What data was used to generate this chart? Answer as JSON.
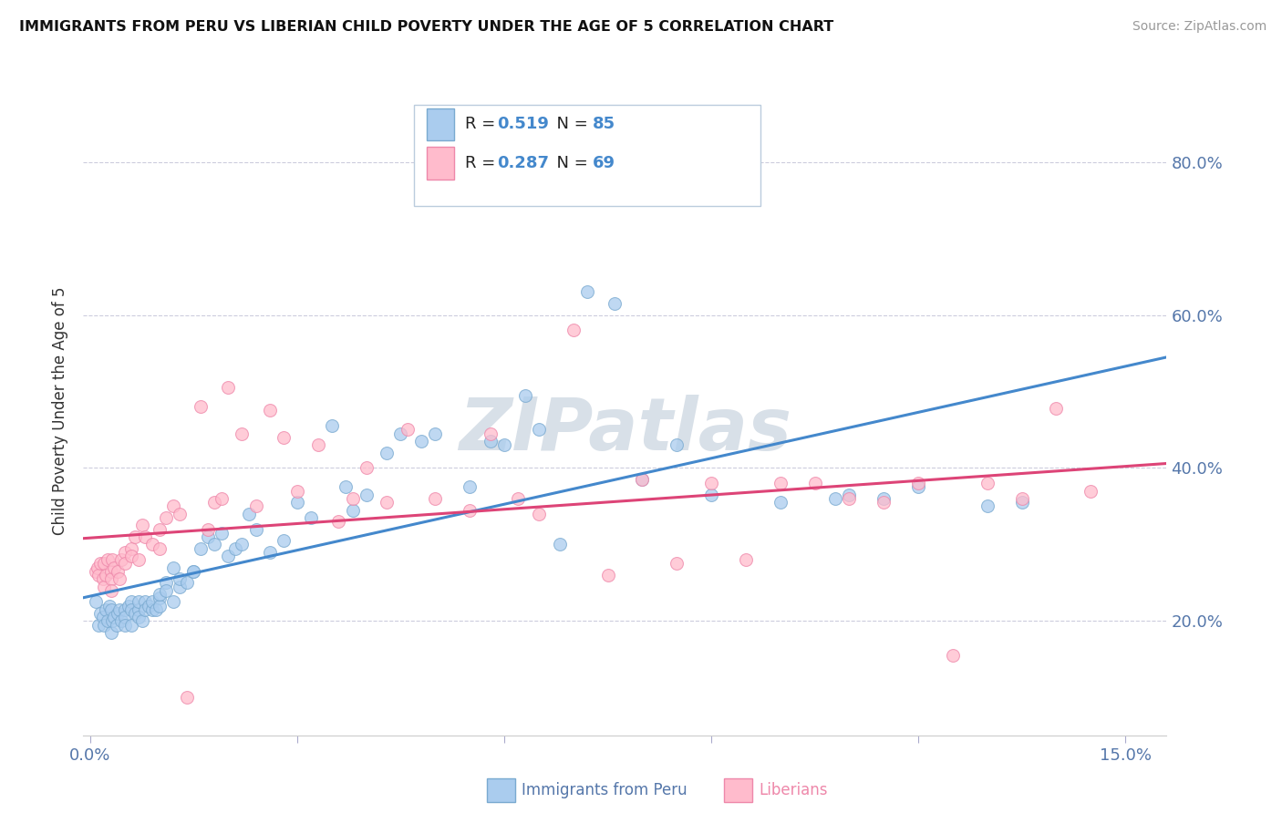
{
  "title": "IMMIGRANTS FROM PERU VS LIBERIAN CHILD POVERTY UNDER THE AGE OF 5 CORRELATION CHART",
  "source": "Source: ZipAtlas.com",
  "ylabel": "Child Poverty Under the Age of 5",
  "legend_r_blue": "0.519",
  "legend_n_blue": "85",
  "legend_r_pink": "0.287",
  "legend_n_pink": "69",
  "legend_label_blue": "Immigrants from Peru",
  "legend_label_pink": "Liberians",
  "x_tick_positions": [
    0.0,
    0.03,
    0.06,
    0.09,
    0.12,
    0.15
  ],
  "x_tick_labels": [
    "0.0%",
    "",
    "",
    "",
    "",
    "15.0%"
  ],
  "y_ticks_right": [
    0.2,
    0.4,
    0.6,
    0.8
  ],
  "y_tick_labels_right": [
    "20.0%",
    "40.0%",
    "60.0%",
    "80.0%"
  ],
  "xlim": [
    -0.001,
    0.156
  ],
  "ylim": [
    0.05,
    0.9
  ],
  "blue_fill": "#AACCEE",
  "blue_edge": "#7AAAD0",
  "pink_fill": "#FFBBCC",
  "pink_edge": "#EE88AA",
  "regression_blue": "#4488CC",
  "regression_pink": "#DD4477",
  "watermark_text": "ZIPatlas",
  "watermark_color": "#CCDDEEBB",
  "grid_color": "#CCCCDD",
  "title_color": "#111111",
  "axis_label_color": "#333333",
  "tick_color": "#5577AA",
  "blue_x": [
    0.0008,
    0.0012,
    0.0015,
    0.0018,
    0.002,
    0.0022,
    0.0025,
    0.0028,
    0.003,
    0.003,
    0.0032,
    0.0035,
    0.0038,
    0.004,
    0.0042,
    0.0045,
    0.005,
    0.005,
    0.005,
    0.0055,
    0.006,
    0.006,
    0.006,
    0.0065,
    0.007,
    0.007,
    0.007,
    0.0075,
    0.008,
    0.008,
    0.0085,
    0.009,
    0.009,
    0.0095,
    0.01,
    0.01,
    0.01,
    0.011,
    0.011,
    0.012,
    0.012,
    0.013,
    0.013,
    0.014,
    0.015,
    0.015,
    0.016,
    0.017,
    0.018,
    0.019,
    0.02,
    0.021,
    0.022,
    0.023,
    0.024,
    0.026,
    0.028,
    0.03,
    0.032,
    0.035,
    0.037,
    0.038,
    0.04,
    0.043,
    0.045,
    0.048,
    0.05,
    0.055,
    0.058,
    0.06,
    0.063,
    0.065,
    0.068,
    0.072,
    0.076,
    0.08,
    0.085,
    0.09,
    0.1,
    0.108,
    0.11,
    0.115,
    0.12,
    0.13,
    0.135
  ],
  "blue_y": [
    0.225,
    0.195,
    0.21,
    0.205,
    0.195,
    0.215,
    0.2,
    0.22,
    0.215,
    0.185,
    0.2,
    0.205,
    0.195,
    0.21,
    0.215,
    0.2,
    0.215,
    0.205,
    0.195,
    0.22,
    0.225,
    0.215,
    0.195,
    0.21,
    0.215,
    0.205,
    0.225,
    0.2,
    0.225,
    0.215,
    0.22,
    0.215,
    0.225,
    0.215,
    0.23,
    0.22,
    0.235,
    0.25,
    0.24,
    0.225,
    0.27,
    0.245,
    0.255,
    0.25,
    0.265,
    0.265,
    0.295,
    0.31,
    0.3,
    0.315,
    0.285,
    0.295,
    0.3,
    0.34,
    0.32,
    0.29,
    0.305,
    0.355,
    0.335,
    0.455,
    0.375,
    0.345,
    0.365,
    0.42,
    0.445,
    0.435,
    0.445,
    0.375,
    0.435,
    0.43,
    0.495,
    0.45,
    0.3,
    0.63,
    0.615,
    0.385,
    0.43,
    0.365,
    0.355,
    0.36,
    0.365,
    0.36,
    0.375,
    0.35,
    0.355
  ],
  "pink_x": [
    0.0008,
    0.001,
    0.0012,
    0.0015,
    0.0018,
    0.002,
    0.002,
    0.0022,
    0.0025,
    0.003,
    0.003,
    0.003,
    0.0032,
    0.0035,
    0.004,
    0.0042,
    0.0045,
    0.005,
    0.005,
    0.006,
    0.006,
    0.0065,
    0.007,
    0.0075,
    0.008,
    0.009,
    0.01,
    0.01,
    0.011,
    0.012,
    0.013,
    0.014,
    0.016,
    0.017,
    0.018,
    0.019,
    0.02,
    0.022,
    0.024,
    0.026,
    0.028,
    0.03,
    0.033,
    0.036,
    0.038,
    0.04,
    0.043,
    0.046,
    0.05,
    0.055,
    0.058,
    0.062,
    0.065,
    0.07,
    0.075,
    0.08,
    0.085,
    0.09,
    0.095,
    0.1,
    0.105,
    0.11,
    0.115,
    0.12,
    0.125,
    0.13,
    0.135,
    0.14,
    0.145
  ],
  "pink_y": [
    0.265,
    0.27,
    0.26,
    0.275,
    0.255,
    0.275,
    0.245,
    0.26,
    0.28,
    0.265,
    0.255,
    0.24,
    0.28,
    0.27,
    0.265,
    0.255,
    0.28,
    0.29,
    0.275,
    0.295,
    0.285,
    0.31,
    0.28,
    0.325,
    0.31,
    0.3,
    0.295,
    0.32,
    0.335,
    0.35,
    0.34,
    0.1,
    0.48,
    0.32,
    0.355,
    0.36,
    0.505,
    0.445,
    0.35,
    0.475,
    0.44,
    0.37,
    0.43,
    0.33,
    0.36,
    0.4,
    0.355,
    0.45,
    0.36,
    0.345,
    0.445,
    0.36,
    0.34,
    0.58,
    0.26,
    0.385,
    0.275,
    0.38,
    0.28,
    0.38,
    0.38,
    0.36,
    0.355,
    0.38,
    0.155,
    0.38,
    0.36,
    0.478,
    0.37
  ]
}
